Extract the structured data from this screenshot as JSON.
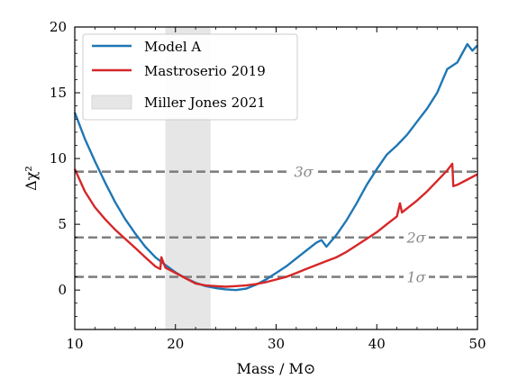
{
  "chart_data": {
    "type": "line",
    "xlabel": "Mass / M⊙",
    "ylabel": "Δχ²",
    "xlim": [
      10,
      50
    ],
    "ylim": [
      -3,
      20
    ],
    "xticks": [
      10,
      20,
      30,
      40,
      50
    ],
    "yticks": [
      0,
      5,
      10,
      15,
      20
    ],
    "grid": false,
    "legend_position": "top-left",
    "series": [
      {
        "name": "Model A",
        "color": "#1f77b4",
        "points": [
          [
            10,
            13.5
          ],
          [
            11,
            11.5
          ],
          [
            12,
            9.8
          ],
          [
            13,
            8.2
          ],
          [
            14,
            6.7
          ],
          [
            15,
            5.4
          ],
          [
            16,
            4.3
          ],
          [
            17,
            3.3
          ],
          [
            18,
            2.5
          ],
          [
            19,
            1.9
          ],
          [
            20,
            1.35
          ],
          [
            21,
            0.9
          ],
          [
            22,
            0.55
          ],
          [
            23,
            0.3
          ],
          [
            24,
            0.15
          ],
          [
            25,
            0.05
          ],
          [
            26,
            0.0
          ],
          [
            27,
            0.1
          ],
          [
            28,
            0.4
          ],
          [
            29,
            0.8
          ],
          [
            30,
            1.3
          ],
          [
            31,
            1.8
          ],
          [
            32,
            2.4
          ],
          [
            33,
            3.0
          ],
          [
            34,
            3.6
          ],
          [
            34.5,
            3.8
          ],
          [
            35,
            3.3
          ],
          [
            36,
            4.2
          ],
          [
            37,
            5.3
          ],
          [
            38,
            6.6
          ],
          [
            39,
            8.0
          ],
          [
            40,
            9.2
          ],
          [
            41,
            10.3
          ],
          [
            42,
            11.0
          ],
          [
            43,
            11.8
          ],
          [
            44,
            12.8
          ],
          [
            45,
            13.8
          ],
          [
            46,
            15.0
          ],
          [
            47,
            16.8
          ],
          [
            48,
            17.3
          ],
          [
            49,
            18.7
          ],
          [
            49.5,
            18.2
          ],
          [
            50,
            18.6
          ]
        ]
      },
      {
        "name": "Mastroserio 2019",
        "color": "#d62728",
        "points": [
          [
            10,
            9.2
          ],
          [
            11,
            7.5
          ],
          [
            12,
            6.3
          ],
          [
            13,
            5.4
          ],
          [
            14,
            4.6
          ],
          [
            15,
            3.9
          ],
          [
            16,
            3.2
          ],
          [
            17,
            2.5
          ],
          [
            18,
            1.8
          ],
          [
            18.5,
            1.6
          ],
          [
            18.6,
            2.5
          ],
          [
            19,
            1.7
          ],
          [
            20,
            1.3
          ],
          [
            21,
            0.9
          ],
          [
            22,
            0.5
          ],
          [
            23,
            0.35
          ],
          [
            24,
            0.3
          ],
          [
            25,
            0.25
          ],
          [
            26,
            0.3
          ],
          [
            27,
            0.35
          ],
          [
            28,
            0.45
          ],
          [
            29,
            0.6
          ],
          [
            30,
            0.8
          ],
          [
            31,
            1.0
          ],
          [
            32,
            1.3
          ],
          [
            33,
            1.6
          ],
          [
            34,
            1.9
          ],
          [
            35,
            2.2
          ],
          [
            36,
            2.5
          ],
          [
            37,
            2.9
          ],
          [
            38,
            3.4
          ],
          [
            39,
            3.9
          ],
          [
            40,
            4.4
          ],
          [
            41,
            5.0
          ],
          [
            42,
            5.6
          ],
          [
            42.3,
            6.6
          ],
          [
            42.5,
            5.9
          ],
          [
            43,
            6.2
          ],
          [
            44,
            6.8
          ],
          [
            45,
            7.5
          ],
          [
            46,
            8.3
          ],
          [
            47,
            9.1
          ],
          [
            47.5,
            9.6
          ],
          [
            47.6,
            7.9
          ],
          [
            48,
            8.0
          ],
          [
            49,
            8.4
          ],
          [
            50,
            8.8
          ]
        ]
      }
    ],
    "shaded_region": {
      "name": "Miller Jones 2021",
      "x_range": [
        19,
        23.5
      ],
      "color": "#e6e6e6"
    },
    "reference_lines": [
      {
        "y": 9,
        "label": "3σ"
      },
      {
        "y": 4,
        "label": "2σ"
      },
      {
        "y": 1,
        "label": "1σ"
      }
    ]
  }
}
